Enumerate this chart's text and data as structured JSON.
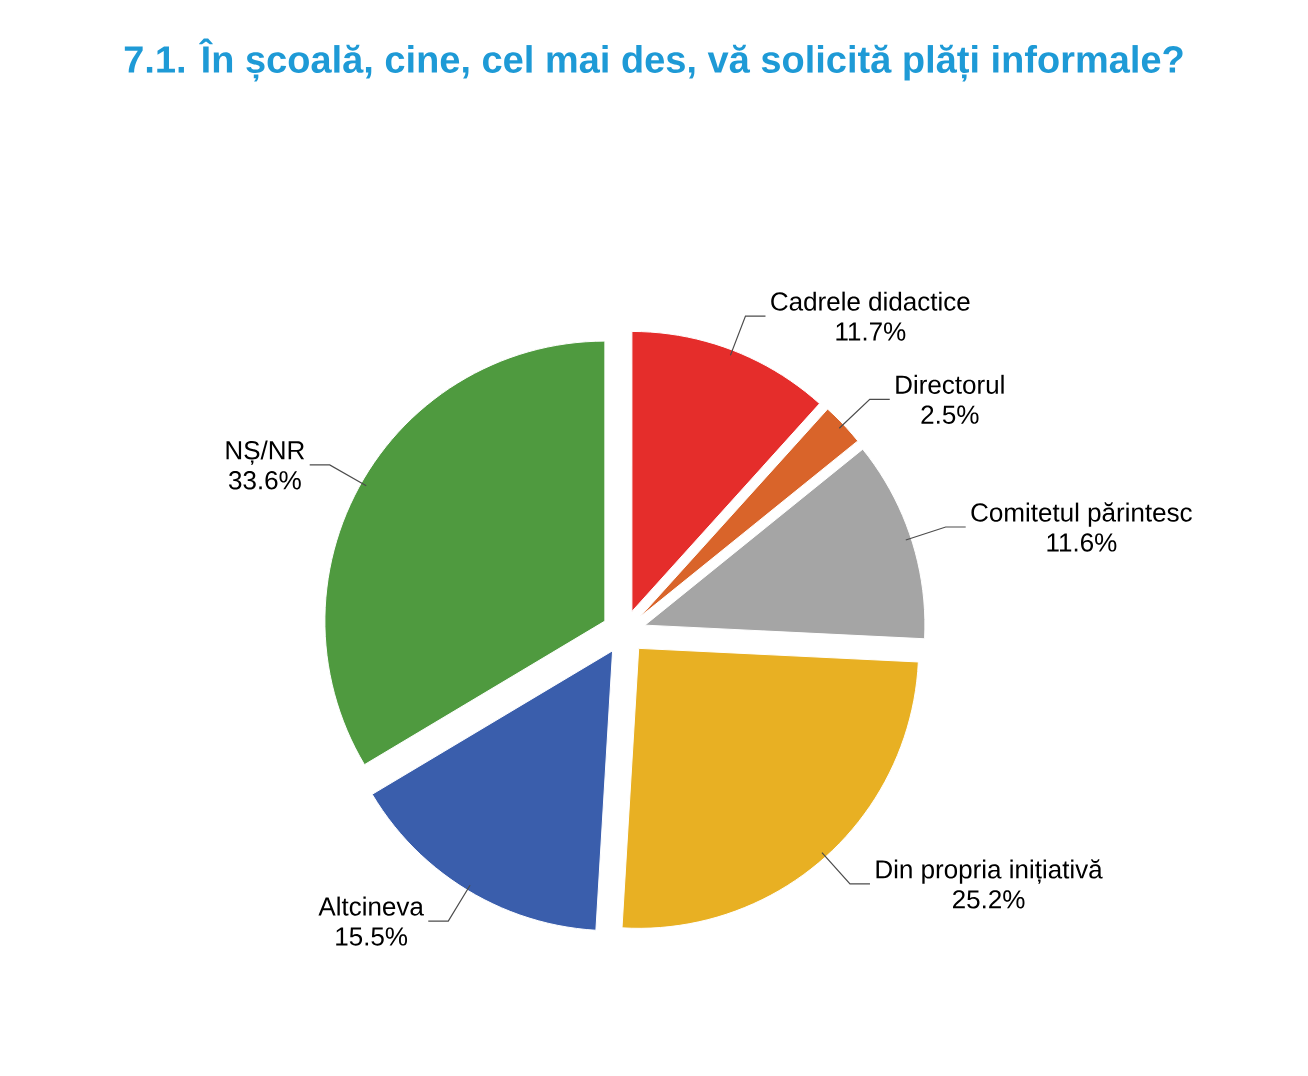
{
  "chart_data": {
    "type": "pie",
    "title": "7.1. În școală, cine, cel mai des, vă solicită plăți informale?",
    "categories": [
      "Cadrele didactice",
      "Directorul",
      "Comitetul părintesc",
      "Din propria inițiativă",
      "Altcineva",
      "NȘ/NR"
    ],
    "values": [
      11.7,
      2.5,
      11.6,
      25.2,
      15.5,
      33.6
    ],
    "colors": [
      "#e52d2b",
      "#d9642a",
      "#a5a5a5",
      "#e8b023",
      "#3a5eac",
      "#4f9a3f"
    ],
    "value_labels": [
      "11.7%",
      "2.5%",
      "11.6%",
      "25.2%",
      "15.5%",
      "33.6%"
    ]
  }
}
